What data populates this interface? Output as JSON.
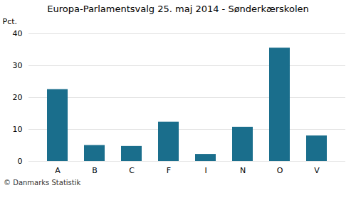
{
  "chart_data": {
    "type": "bar",
    "title": "Europa-Parlamentsvalg 25. maj 2014 - Sønderkærskolen",
    "categories": [
      "A",
      "B",
      "C",
      "F",
      "I",
      "N",
      "O",
      "V"
    ],
    "values": [
      22.5,
      5.0,
      4.7,
      12.3,
      2.2,
      10.7,
      35.5,
      8.0
    ],
    "color": "#1a6e8c",
    "ylabel": "Pct.",
    "ylim": [
      0,
      40
    ],
    "yticks": [
      0,
      10,
      20,
      30,
      40
    ],
    "grid": true,
    "footer": "© Danmarks Statistik"
  }
}
